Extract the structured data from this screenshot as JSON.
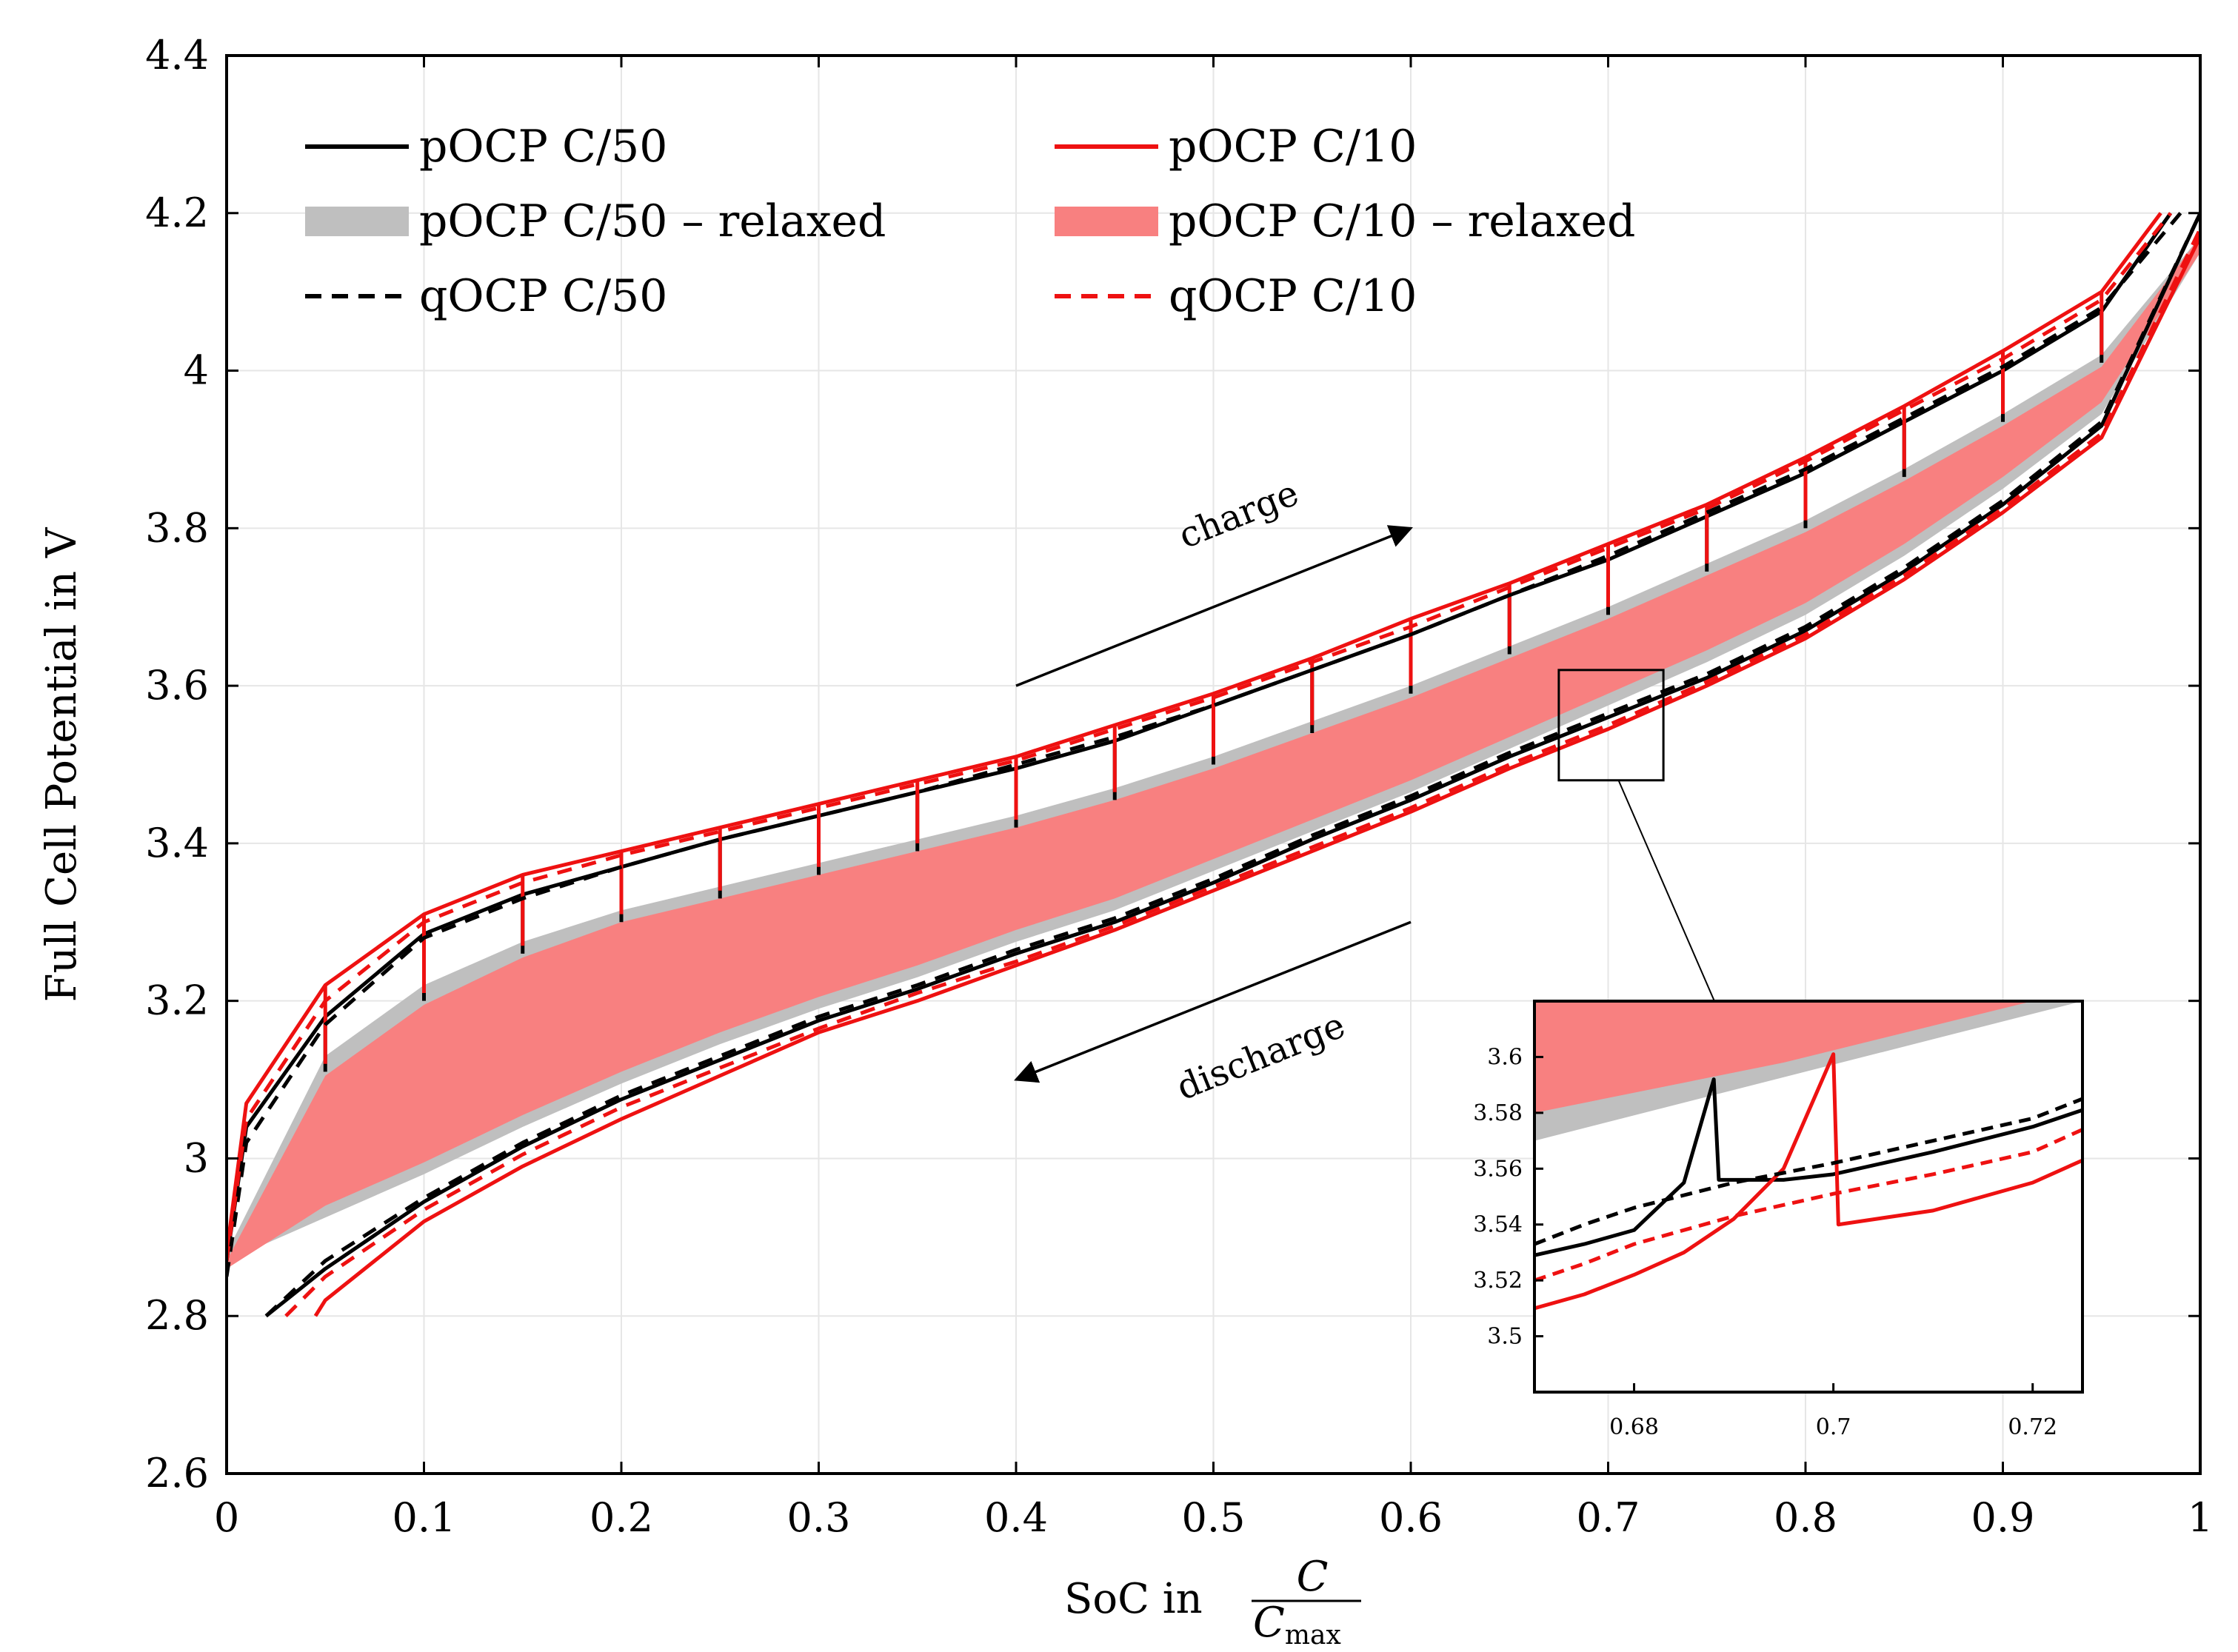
{
  "chart_data": {
    "type": "line",
    "xlabel": "SoC in",
    "xlabel_fraction": {
      "numerator": "C",
      "denominator": "C",
      "denominator_sub": "max"
    },
    "ylabel": "Full Cell Potential in V",
    "xlim": [
      0,
      1
    ],
    "ylim": [
      2.6,
      4.4
    ],
    "x_ticks": [
      0,
      0.1,
      0.2,
      0.3,
      0.4,
      0.5,
      0.6,
      0.7,
      0.8,
      0.9,
      1
    ],
    "x_tick_labels": [
      "0",
      "0.1",
      "0.2",
      "0.3",
      "0.4",
      "0.5",
      "0.6",
      "0.7",
      "0.8",
      "0.9",
      "1"
    ],
    "y_ticks": [
      2.6,
      2.8,
      3.0,
      3.2,
      3.4,
      3.6,
      3.8,
      4.0,
      4.2,
      4.4
    ],
    "y_tick_labels": [
      "2.6",
      "2.8",
      "3",
      "3.2",
      "3.4",
      "3.6",
      "3.8",
      "4",
      "4.2",
      "4.4"
    ],
    "grid": true,
    "legend_position": "top-left",
    "legend_columns": 2,
    "colors": {
      "black": "#000000",
      "red": "#ee1111",
      "gray_band": "#bfbfbf",
      "red_band": "#f88080"
    },
    "series": [
      {
        "name": "pOCP C/50",
        "style": "solid",
        "color": "#000000",
        "charge": {
          "x": [
            0,
            0.01,
            0.05,
            0.1,
            0.15,
            0.2,
            0.25,
            0.3,
            0.35,
            0.4,
            0.45,
            0.5,
            0.55,
            0.6,
            0.65,
            0.7,
            0.75,
            0.8,
            0.85,
            0.9,
            0.95,
            0.985
          ],
          "y": [
            2.87,
            3.04,
            3.18,
            3.285,
            3.335,
            3.37,
            3.405,
            3.435,
            3.465,
            3.495,
            3.53,
            3.575,
            3.62,
            3.665,
            3.715,
            3.76,
            3.815,
            3.87,
            3.935,
            4.0,
            4.075,
            4.2
          ]
        },
        "discharge": {
          "x": [
            0.02,
            0.05,
            0.1,
            0.15,
            0.2,
            0.25,
            0.3,
            0.35,
            0.4,
            0.45,
            0.5,
            0.55,
            0.6,
            0.65,
            0.7,
            0.75,
            0.8,
            0.85,
            0.9,
            0.95,
            1
          ],
          "y": [
            2.8,
            2.86,
            2.945,
            3.015,
            3.075,
            3.125,
            3.175,
            3.215,
            3.26,
            3.3,
            3.35,
            3.405,
            3.455,
            3.51,
            3.56,
            3.61,
            3.67,
            3.745,
            3.83,
            3.93,
            4.2
          ]
        },
        "relax_jumps": [
          {
            "x": 0.05,
            "y_from": 3.18,
            "y_to": 3.11
          },
          {
            "x": 0.1,
            "y_from": 3.285,
            "y_to": 3.2
          },
          {
            "x": 0.15,
            "y_from": 3.335,
            "y_to": 3.26
          },
          {
            "x": 0.2,
            "y_from": 3.37,
            "y_to": 3.3
          },
          {
            "x": 0.25,
            "y_from": 3.405,
            "y_to": 3.33
          },
          {
            "x": 0.3,
            "y_from": 3.435,
            "y_to": 3.36
          },
          {
            "x": 0.35,
            "y_from": 3.465,
            "y_to": 3.39
          },
          {
            "x": 0.4,
            "y_from": 3.495,
            "y_to": 3.42
          },
          {
            "x": 0.45,
            "y_from": 3.53,
            "y_to": 3.455
          },
          {
            "x": 0.5,
            "y_from": 3.575,
            "y_to": 3.5
          },
          {
            "x": 0.55,
            "y_from": 3.62,
            "y_to": 3.54
          },
          {
            "x": 0.6,
            "y_from": 3.665,
            "y_to": 3.59
          },
          {
            "x": 0.65,
            "y_from": 3.715,
            "y_to": 3.64
          },
          {
            "x": 0.7,
            "y_from": 3.76,
            "y_to": 3.69
          },
          {
            "x": 0.75,
            "y_from": 3.815,
            "y_to": 3.745
          },
          {
            "x": 0.8,
            "y_from": 3.87,
            "y_to": 3.8
          },
          {
            "x": 0.85,
            "y_from": 3.935,
            "y_to": 3.865
          },
          {
            "x": 0.9,
            "y_from": 4.0,
            "y_to": 3.935
          },
          {
            "x": 0.95,
            "y_from": 4.075,
            "y_to": 4.01
          }
        ]
      },
      {
        "name": "pOCP C/10",
        "style": "solid",
        "color": "#ee1111",
        "charge": {
          "x": [
            0,
            0.01,
            0.05,
            0.1,
            0.15,
            0.2,
            0.25,
            0.3,
            0.35,
            0.4,
            0.45,
            0.5,
            0.55,
            0.6,
            0.65,
            0.7,
            0.75,
            0.8,
            0.85,
            0.9,
            0.95,
            0.98
          ],
          "y": [
            2.88,
            3.07,
            3.22,
            3.31,
            3.36,
            3.39,
            3.42,
            3.45,
            3.48,
            3.51,
            3.55,
            3.59,
            3.635,
            3.685,
            3.73,
            3.78,
            3.83,
            3.89,
            3.955,
            4.025,
            4.1,
            4.2
          ]
        },
        "discharge": {
          "x": [
            0.045,
            0.05,
            0.1,
            0.15,
            0.2,
            0.25,
            0.3,
            0.35,
            0.4,
            0.45,
            0.5,
            0.55,
            0.6,
            0.65,
            0.7,
            0.75,
            0.8,
            0.85,
            0.9,
            0.95,
            1
          ],
          "y": [
            2.8,
            2.82,
            2.92,
            2.99,
            3.05,
            3.105,
            3.16,
            3.2,
            3.245,
            3.29,
            3.34,
            3.39,
            3.44,
            3.495,
            3.545,
            3.6,
            3.66,
            3.735,
            3.82,
            3.915,
            4.17
          ]
        },
        "relax_jumps": [
          {
            "x": 0.05,
            "y_from": 3.22,
            "y_to": 3.12
          },
          {
            "x": 0.1,
            "y_from": 3.31,
            "y_to": 3.21
          },
          {
            "x": 0.15,
            "y_from": 3.36,
            "y_to": 3.27
          },
          {
            "x": 0.2,
            "y_from": 3.39,
            "y_to": 3.31
          },
          {
            "x": 0.25,
            "y_from": 3.42,
            "y_to": 3.34
          },
          {
            "x": 0.3,
            "y_from": 3.45,
            "y_to": 3.37
          },
          {
            "x": 0.35,
            "y_from": 3.48,
            "y_to": 3.4
          },
          {
            "x": 0.4,
            "y_from": 3.51,
            "y_to": 3.43
          },
          {
            "x": 0.45,
            "y_from": 3.55,
            "y_to": 3.465
          },
          {
            "x": 0.5,
            "y_from": 3.59,
            "y_to": 3.51
          },
          {
            "x": 0.55,
            "y_from": 3.635,
            "y_to": 3.55
          },
          {
            "x": 0.6,
            "y_from": 3.685,
            "y_to": 3.6
          },
          {
            "x": 0.65,
            "y_from": 3.73,
            "y_to": 3.65
          },
          {
            "x": 0.7,
            "y_from": 3.78,
            "y_to": 3.7
          },
          {
            "x": 0.75,
            "y_from": 3.83,
            "y_to": 3.755
          },
          {
            "x": 0.8,
            "y_from": 3.89,
            "y_to": 3.81
          },
          {
            "x": 0.85,
            "y_from": 3.955,
            "y_to": 3.875
          },
          {
            "x": 0.9,
            "y_from": 4.025,
            "y_to": 3.945
          },
          {
            "x": 0.95,
            "y_from": 4.1,
            "y_to": 4.02
          }
        ]
      },
      {
        "name": "pOCP C/50 – relaxed",
        "style": "band",
        "color": "#bfbfbf",
        "x": [
          0,
          0.05,
          0.1,
          0.15,
          0.2,
          0.25,
          0.3,
          0.35,
          0.4,
          0.45,
          0.5,
          0.55,
          0.6,
          0.65,
          0.7,
          0.75,
          0.8,
          0.85,
          0.9,
          0.95,
          1
        ],
        "upper": [
          2.88,
          3.13,
          3.22,
          3.275,
          3.315,
          3.345,
          3.375,
          3.405,
          3.435,
          3.47,
          3.51,
          3.555,
          3.6,
          3.65,
          3.7,
          3.755,
          3.81,
          3.875,
          3.945,
          4.02,
          4.17
        ],
        "lower": [
          2.87,
          2.925,
          2.98,
          3.04,
          3.095,
          3.145,
          3.19,
          3.23,
          3.275,
          3.315,
          3.365,
          3.415,
          3.465,
          3.52,
          3.575,
          3.63,
          3.69,
          3.765,
          3.85,
          3.945,
          4.15
        ]
      },
      {
        "name": "pOCP C/10 – relaxed",
        "style": "band",
        "color": "#f88080",
        "x": [
          0,
          0.05,
          0.1,
          0.15,
          0.2,
          0.25,
          0.3,
          0.35,
          0.4,
          0.45,
          0.5,
          0.55,
          0.6,
          0.65,
          0.7,
          0.75,
          0.8,
          0.85,
          0.9,
          0.95,
          1
        ],
        "upper": [
          2.87,
          3.105,
          3.195,
          3.255,
          3.3,
          3.33,
          3.36,
          3.39,
          3.42,
          3.455,
          3.495,
          3.54,
          3.585,
          3.635,
          3.685,
          3.74,
          3.795,
          3.86,
          3.93,
          4.005,
          4.17
        ],
        "lower": [
          2.86,
          2.94,
          2.995,
          3.055,
          3.11,
          3.16,
          3.205,
          3.245,
          3.29,
          3.33,
          3.38,
          3.43,
          3.48,
          3.535,
          3.59,
          3.645,
          3.705,
          3.78,
          3.865,
          3.96,
          4.15
        ]
      },
      {
        "name": "qOCP C/50",
        "style": "dashed",
        "color": "#000000",
        "charge": {
          "x": [
            0,
            0.01,
            0.05,
            0.1,
            0.15,
            0.2,
            0.25,
            0.3,
            0.35,
            0.4,
            0.45,
            0.5,
            0.55,
            0.6,
            0.65,
            0.7,
            0.75,
            0.8,
            0.85,
            0.9,
            0.95,
            0.99
          ],
          "y": [
            2.85,
            3.02,
            3.17,
            3.28,
            3.33,
            3.37,
            3.405,
            3.435,
            3.465,
            3.5,
            3.535,
            3.575,
            3.62,
            3.665,
            3.715,
            3.765,
            3.82,
            3.875,
            3.94,
            4.005,
            4.08,
            4.2
          ]
        },
        "discharge": {
          "x": [
            0.02,
            0.05,
            0.1,
            0.15,
            0.2,
            0.25,
            0.3,
            0.35,
            0.4,
            0.45,
            0.5,
            0.55,
            0.6,
            0.65,
            0.7,
            0.75,
            0.8,
            0.85,
            0.9,
            0.95,
            1
          ],
          "y": [
            2.8,
            2.87,
            2.95,
            3.02,
            3.08,
            3.13,
            3.18,
            3.22,
            3.265,
            3.305,
            3.355,
            3.41,
            3.46,
            3.515,
            3.565,
            3.615,
            3.675,
            3.75,
            3.835,
            3.935,
            4.2
          ]
        }
      },
      {
        "name": "qOCP C/10",
        "style": "dashed",
        "color": "#ee1111",
        "charge": {
          "x": [
            0,
            0.01,
            0.05,
            0.1,
            0.15,
            0.2,
            0.25,
            0.3,
            0.35,
            0.4,
            0.45,
            0.5,
            0.55,
            0.6,
            0.65,
            0.7,
            0.75,
            0.8,
            0.85,
            0.9,
            0.95,
            0.985
          ],
          "y": [
            2.87,
            3.05,
            3.2,
            3.3,
            3.35,
            3.385,
            3.415,
            3.445,
            3.475,
            3.505,
            3.545,
            3.585,
            3.63,
            3.675,
            3.725,
            3.775,
            3.825,
            3.885,
            3.95,
            4.015,
            4.09,
            4.2
          ]
        },
        "discharge": {
          "x": [
            0.03,
            0.05,
            0.1,
            0.15,
            0.2,
            0.25,
            0.3,
            0.35,
            0.4,
            0.45,
            0.5,
            0.55,
            0.6,
            0.65,
            0.7,
            0.75,
            0.8,
            0.85,
            0.9,
            0.95,
            1
          ],
          "y": [
            2.8,
            2.85,
            2.935,
            3.005,
            3.065,
            3.115,
            3.165,
            3.21,
            3.25,
            3.295,
            3.345,
            3.395,
            3.445,
            3.5,
            3.55,
            3.605,
            3.665,
            3.74,
            3.825,
            3.92,
            4.18
          ]
        }
      }
    ],
    "annotations": [
      {
        "text": "charge",
        "arrow_from": [
          0.4,
          3.6
        ],
        "arrow_to": [
          0.6,
          3.8
        ]
      },
      {
        "text": "discharge",
        "arrow_from": [
          0.6,
          3.3
        ],
        "arrow_to": [
          0.4,
          3.1
        ]
      }
    ],
    "inset": {
      "region": {
        "xlim": [
          0.675,
          0.728
        ],
        "ylim": [
          3.48,
          3.62
        ]
      },
      "xlim": [
        0.67,
        0.725
      ],
      "ylim": [
        3.48,
        3.62
      ],
      "x_ticks": [
        0.68,
        0.7,
        0.72
      ],
      "x_tick_labels": [
        "0.68",
        "0.7",
        "0.72"
      ],
      "y_ticks": [
        3.5,
        3.52,
        3.54,
        3.56,
        3.58,
        3.6
      ],
      "y_tick_labels": [
        "3.5",
        "3.52",
        "3.54",
        "3.56",
        "3.58",
        "3.6"
      ],
      "series": [
        {
          "name": "pOCP C/50",
          "x": [
            0.67,
            0.675,
            0.68,
            0.685,
            0.688,
            0.6885,
            0.695,
            0.7,
            0.71,
            0.72,
            0.725
          ],
          "y": [
            3.529,
            3.533,
            3.538,
            3.555,
            3.592,
            3.556,
            3.556,
            3.558,
            3.566,
            3.575,
            3.581
          ]
        },
        {
          "name": "pOCP C/10",
          "x": [
            0.67,
            0.675,
            0.68,
            0.685,
            0.69,
            0.695,
            0.7,
            0.7005,
            0.71,
            0.72,
            0.725
          ],
          "y": [
            3.51,
            3.515,
            3.522,
            3.53,
            3.542,
            3.56,
            3.601,
            3.54,
            3.545,
            3.555,
            3.563
          ]
        },
        {
          "name": "qOCP C/50",
          "x": [
            0.67,
            0.675,
            0.68,
            0.69,
            0.7,
            0.71,
            0.72,
            0.725
          ],
          "y": [
            3.533,
            3.54,
            3.546,
            3.555,
            3.562,
            3.57,
            3.578,
            3.585
          ]
        },
        {
          "name": "qOCP C/10",
          "x": [
            0.67,
            0.675,
            0.68,
            0.69,
            0.7,
            0.71,
            0.72,
            0.725
          ],
          "y": [
            3.52,
            3.526,
            3.533,
            3.543,
            3.551,
            3.558,
            3.566,
            3.574
          ]
        }
      ],
      "bands": [
        {
          "name": "pOCP C/50 – relaxed",
          "x": [
            0.67,
            0.725
          ],
          "upper": [
            3.58,
            3.62
          ],
          "lower": [
            3.57,
            3.62
          ]
        },
        {
          "name": "pOCP C/10 – relaxed",
          "x": [
            0.67,
            0.725
          ],
          "upper": [
            3.62,
            3.62
          ],
          "lower": [
            3.58,
            3.62
          ]
        }
      ]
    }
  }
}
